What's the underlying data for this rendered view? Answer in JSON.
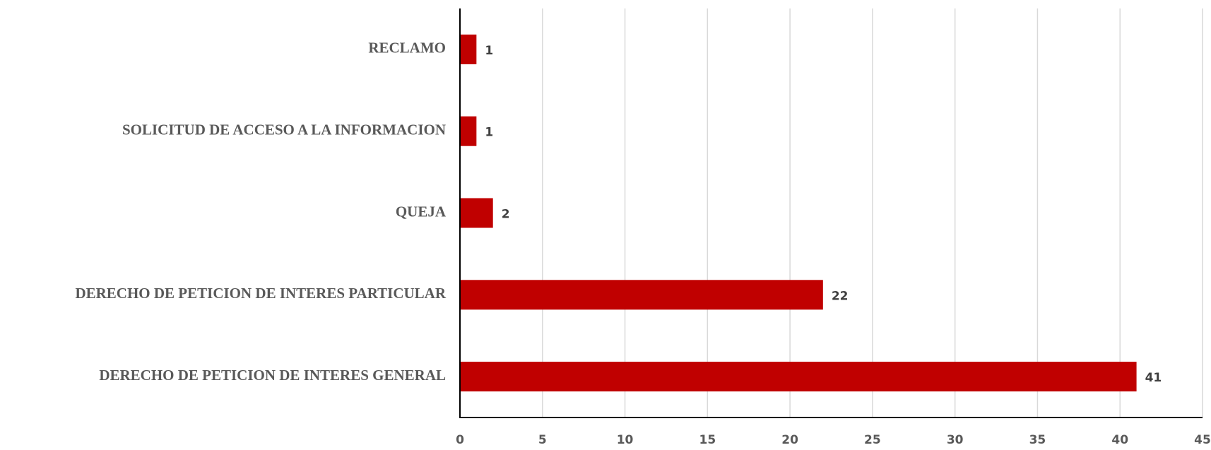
{
  "chart_data": {
    "type": "bar",
    "orientation": "horizontal",
    "categories": [
      "RECLAMO",
      "SOLICITUD DE ACCESO A LA INFORMACION",
      "QUEJA",
      "DERECHO DE PETICION DE INTERES PARTICULAR",
      "DERECHO DE PETICION DE INTERES GENERAL"
    ],
    "values": [
      1,
      1,
      2,
      22,
      41
    ],
    "data_labels": [
      "1",
      "1",
      "2",
      "22",
      "41"
    ],
    "xlim": [
      0,
      45
    ],
    "x_ticks": [
      0,
      5,
      10,
      15,
      20,
      25,
      30,
      35,
      40,
      45
    ],
    "x_tick_labels": [
      "0",
      "5",
      "10",
      "15",
      "20",
      "25",
      "30",
      "35",
      "40",
      "45"
    ],
    "grid": "vertical",
    "legend": "none",
    "title": "",
    "xlabel": "",
    "ylabel": "",
    "colors": {
      "bar": "#C00000",
      "grid": "#D9D9D9",
      "axis": "#000000"
    }
  }
}
